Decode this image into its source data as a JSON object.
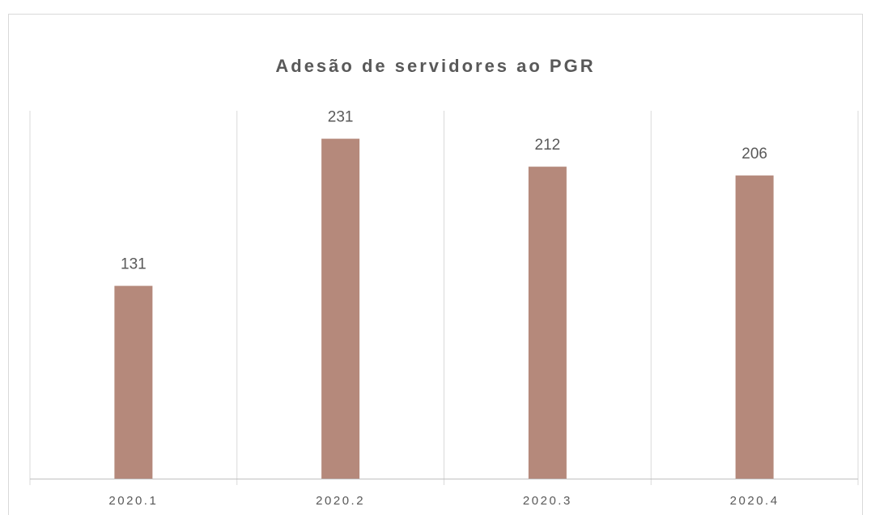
{
  "chart_data": {
    "type": "bar",
    "title": "Adesão de servidores ao PGR",
    "categories": [
      "2020.1",
      "2020.2",
      "2020.3",
      "2020.4"
    ],
    "values": [
      131,
      231,
      212,
      206
    ],
    "color": "#b5897b",
    "ylim": [
      0,
      250
    ],
    "grid": false
  }
}
